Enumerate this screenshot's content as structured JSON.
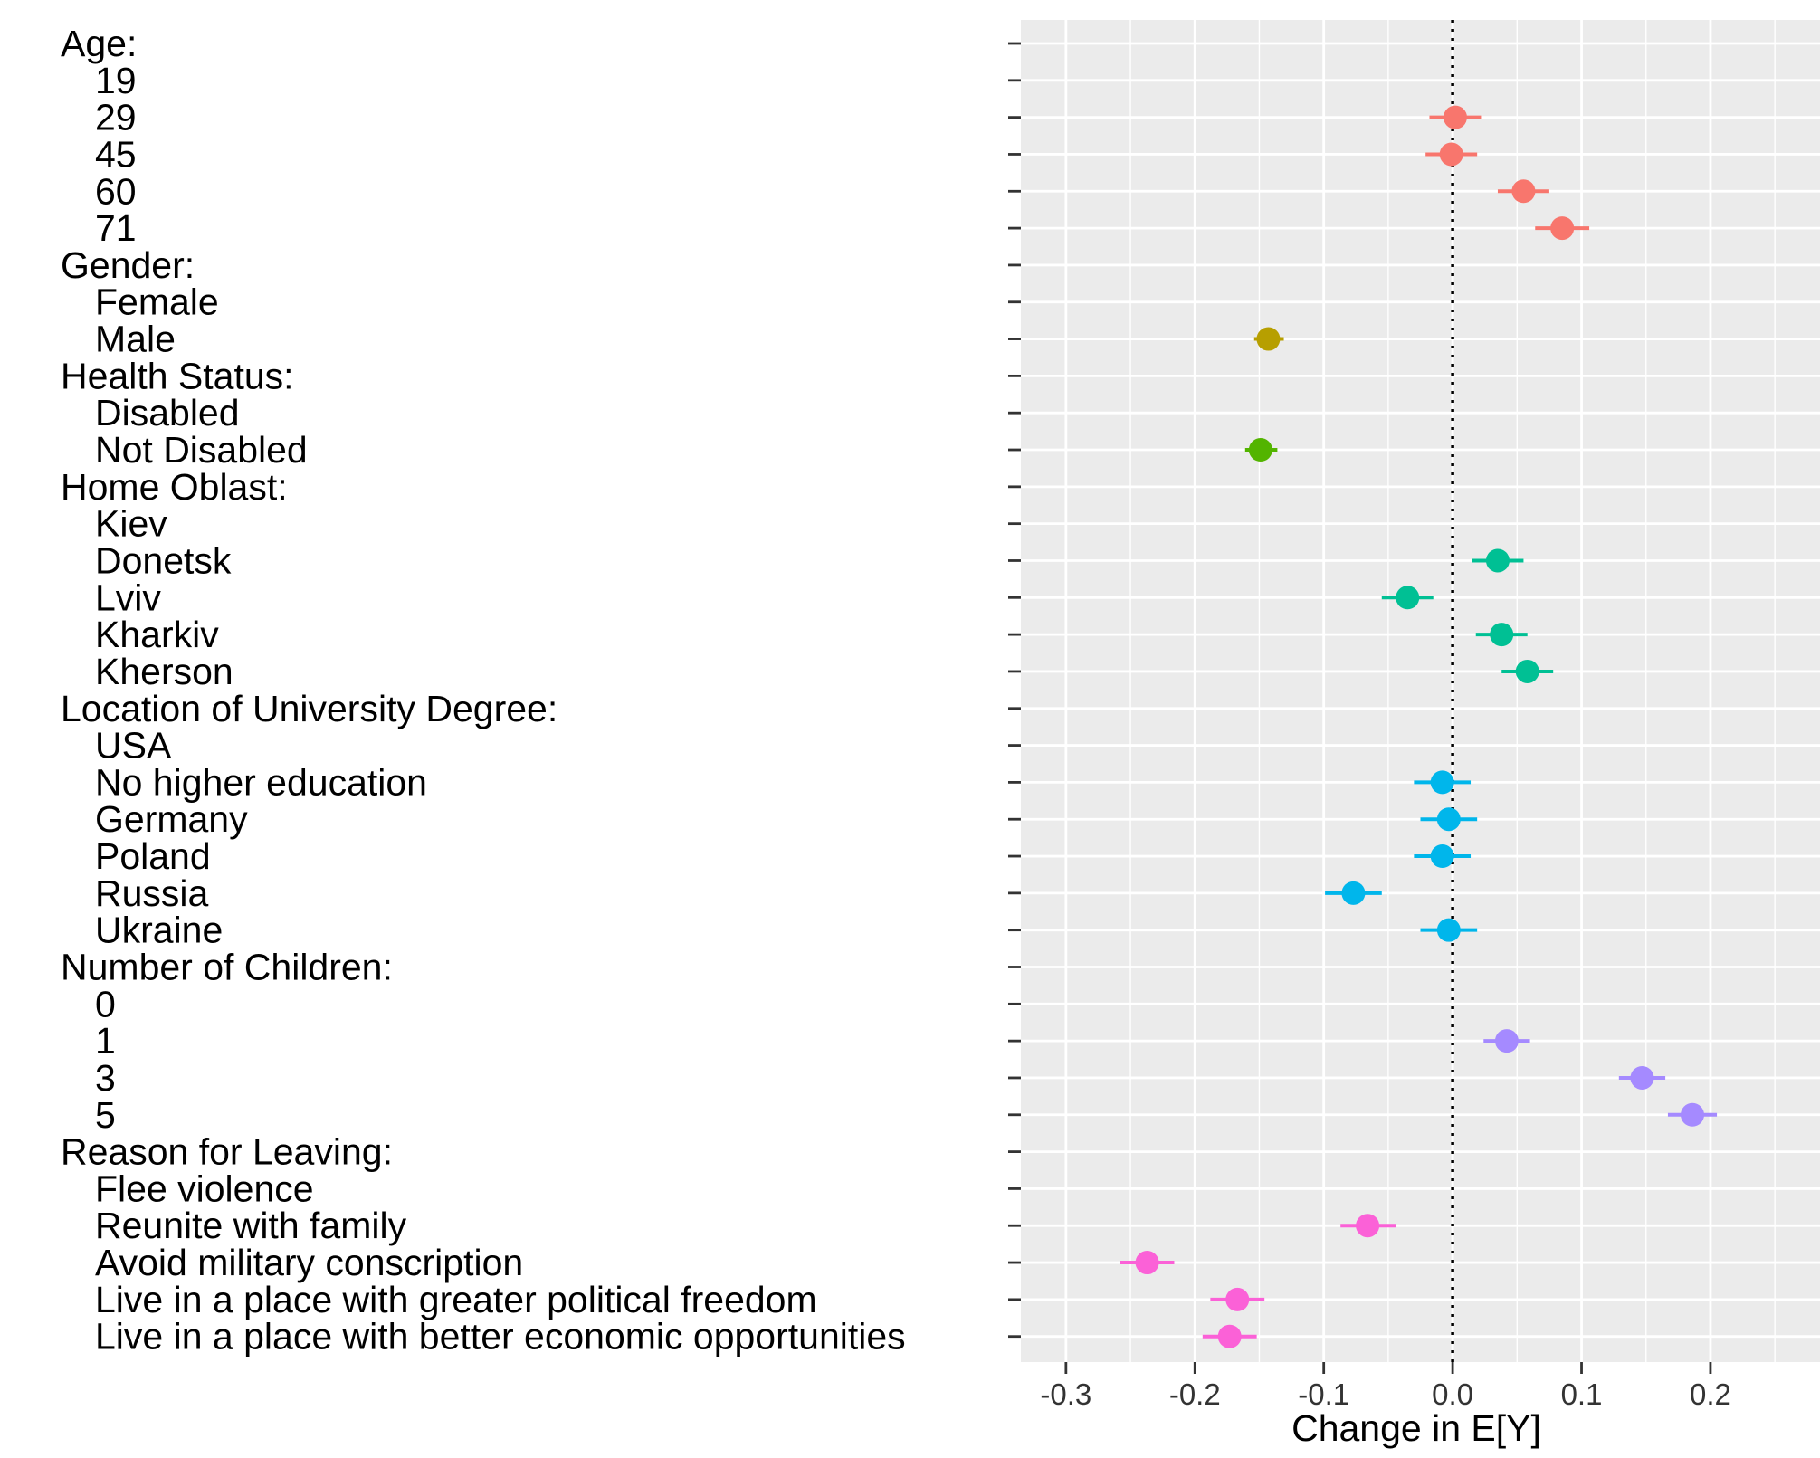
{
  "chart_data": {
    "type": "scatter",
    "xlabel": "Change in E[Y]",
    "ylabel": "",
    "title": "",
    "xlim": [
      -0.335,
      0.285
    ],
    "xticks": [
      -0.3,
      -0.2,
      -0.1,
      0.0,
      0.1,
      0.2
    ],
    "xtick_labels": [
      "-0.3",
      "-0.2",
      "-0.1",
      "0.0",
      "0.1",
      "0.2"
    ],
    "reference_line": 0.0,
    "grid": true,
    "legend": "none",
    "series": [
      {
        "group": "Age:",
        "color": "#F8766D",
        "levels": [
          {
            "label": "19",
            "value": null,
            "ci": null
          },
          {
            "label": "29",
            "value": 0.002,
            "ci": [
              -0.018,
              0.022
            ]
          },
          {
            "label": "45",
            "value": -0.001,
            "ci": [
              -0.021,
              0.019
            ]
          },
          {
            "label": "60",
            "value": 0.055,
            "ci": [
              0.035,
              0.075
            ]
          },
          {
            "label": "71",
            "value": 0.085,
            "ci": [
              0.064,
              0.106
            ]
          }
        ]
      },
      {
        "group": "Gender:",
        "color": "#B79F00",
        "levels": [
          {
            "label": "Female",
            "value": null,
            "ci": null
          },
          {
            "label": "Male",
            "value": -0.143,
            "ci": [
              -0.154,
              -0.131
            ]
          }
        ]
      },
      {
        "group": "Health Status:",
        "color": "#53B400",
        "levels": [
          {
            "label": "Disabled",
            "value": null,
            "ci": null
          },
          {
            "label": "Not Disabled",
            "value": -0.149,
            "ci": [
              -0.161,
              -0.136
            ]
          }
        ]
      },
      {
        "group": "Home Oblast:",
        "color": "#00C094",
        "levels": [
          {
            "label": "Kiev",
            "value": null,
            "ci": null
          },
          {
            "label": "Donetsk",
            "value": 0.035,
            "ci": [
              0.015,
              0.055
            ]
          },
          {
            "label": "Lviv",
            "value": -0.035,
            "ci": [
              -0.055,
              -0.015
            ]
          },
          {
            "label": "Kharkiv",
            "value": 0.038,
            "ci": [
              0.018,
              0.058
            ]
          },
          {
            "label": "Kherson",
            "value": 0.058,
            "ci": [
              0.038,
              0.078
            ]
          }
        ]
      },
      {
        "group": "Location of University Degree:",
        "color": "#00B6EB",
        "levels": [
          {
            "label": "USA",
            "value": null,
            "ci": null
          },
          {
            "label": "No higher education",
            "value": -0.008,
            "ci": [
              -0.03,
              0.014
            ]
          },
          {
            "label": "Germany",
            "value": -0.003,
            "ci": [
              -0.025,
              0.019
            ]
          },
          {
            "label": "Poland",
            "value": -0.008,
            "ci": [
              -0.03,
              0.014
            ]
          },
          {
            "label": "Russia",
            "value": -0.077,
            "ci": [
              -0.099,
              -0.055
            ]
          },
          {
            "label": "Ukraine",
            "value": -0.003,
            "ci": [
              -0.025,
              0.019
            ]
          }
        ]
      },
      {
        "group": "Number of Children:",
        "color": "#A58AFF",
        "levels": [
          {
            "label": "0",
            "value": null,
            "ci": null
          },
          {
            "label": "1",
            "value": 0.042,
            "ci": [
              0.024,
              0.06
            ]
          },
          {
            "label": "3",
            "value": 0.147,
            "ci": [
              0.129,
              0.165
            ]
          },
          {
            "label": "5",
            "value": 0.186,
            "ci": [
              0.167,
              0.205
            ]
          }
        ]
      },
      {
        "group": "Reason for Leaving:",
        "color": "#FB61D7",
        "levels": [
          {
            "label": "Flee violence",
            "value": null,
            "ci": null
          },
          {
            "label": "Reunite with family",
            "value": -0.066,
            "ci": [
              -0.087,
              -0.044
            ]
          },
          {
            "label": "Avoid military conscription",
            "value": -0.237,
            "ci": [
              -0.258,
              -0.216
            ]
          },
          {
            "label": "Live in a place with greater political freedom",
            "value": -0.167,
            "ci": [
              -0.188,
              -0.146
            ]
          },
          {
            "label": "Live in a place with better economic opportunities",
            "value": -0.173,
            "ci": [
              -0.194,
              -0.152
            ]
          }
        ]
      }
    ]
  }
}
